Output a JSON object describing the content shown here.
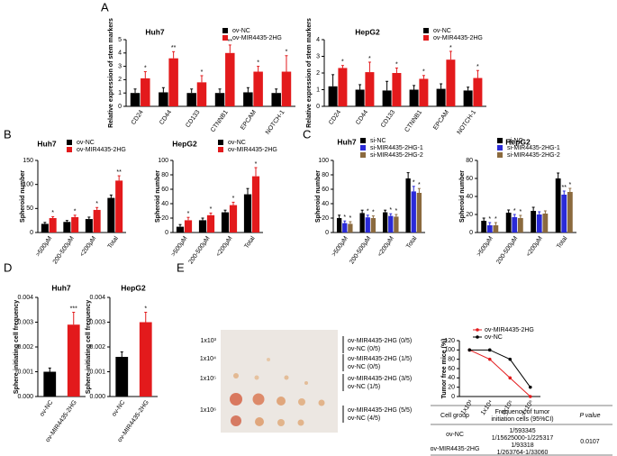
{
  "panel_labels": [
    "A",
    "B",
    "C",
    "D",
    "E"
  ],
  "chart_data": [
    {
      "type": "bar",
      "title": "Huh7",
      "ylabel": "Relative expression of stem markers",
      "legend": true,
      "categories": [
        "CD24",
        "CD44",
        "CD133",
        "CTNNB1",
        "EPCAM",
        "NOTCH-1"
      ],
      "ylim": [
        0,
        5
      ],
      "yticks": [
        0,
        1,
        2,
        3,
        4,
        5
      ],
      "series": [
        {
          "name": "ov-NC",
          "color": "#000000",
          "values": [
            1,
            1.05,
            1,
            1,
            1.05,
            1
          ],
          "errors": [
            0.3,
            0.35,
            0.3,
            0.3,
            0.35,
            0.3
          ],
          "annotations": [
            null,
            null,
            null,
            null,
            null,
            null
          ]
        },
        {
          "name": "ov-MIR4435-2HG",
          "color": "#e31a1c",
          "values": [
            2.1,
            3.6,
            1.8,
            4.0,
            2.6,
            2.6
          ],
          "errors": [
            0.5,
            0.5,
            0.5,
            0.6,
            0.4,
            1.2
          ],
          "annotations": [
            "*",
            "**",
            "*",
            "**",
            "*",
            "*"
          ]
        }
      ]
    },
    {
      "type": "bar",
      "title": "HepG2",
      "ylabel": "Relative expression of stem markers",
      "legend": true,
      "categories": [
        "CD24",
        "CD44",
        "CD133",
        "CTNNB1",
        "EPCAM",
        "NOTCH-1"
      ],
      "ylim": [
        0,
        4
      ],
      "yticks": [
        0,
        1,
        2,
        3,
        4
      ],
      "series": [
        {
          "name": "ov-NC",
          "color": "#000000",
          "values": [
            1.2,
            1.0,
            0.95,
            1.0,
            1.05,
            0.95
          ],
          "errors": [
            0.7,
            0.3,
            0.55,
            0.25,
            0.3,
            0.2
          ],
          "annotations": [
            null,
            null,
            null,
            null,
            null,
            null
          ]
        },
        {
          "name": "ov-MIR4435-2HG",
          "color": "#e31a1c",
          "values": [
            2.3,
            2.05,
            2.0,
            1.65,
            2.8,
            1.7
          ],
          "errors": [
            0.15,
            0.6,
            0.3,
            0.2,
            0.5,
            0.45
          ],
          "annotations": [
            "*",
            "*",
            "*",
            "*",
            "*",
            "*"
          ]
        }
      ]
    },
    {
      "type": "bar",
      "title": "Huh7",
      "ylabel": "Spheroid number",
      "legend": true,
      "categories": [
        ">500μM",
        "200-500μM",
        "<200μM",
        "Total"
      ],
      "ylim": [
        0,
        150
      ],
      "yticks": [
        0,
        50,
        100,
        150
      ],
      "series": [
        {
          "name": "ov-NC",
          "color": "#000000",
          "values": [
            18,
            22,
            28,
            72
          ],
          "errors": [
            3,
            3,
            4,
            6
          ],
          "annotations": [
            null,
            null,
            null,
            null
          ]
        },
        {
          "name": "ov-MIR4435-2HG",
          "color": "#e31a1c",
          "values": [
            30,
            32,
            47,
            108
          ],
          "errors": [
            3,
            4,
            5,
            10
          ],
          "annotations": [
            "*",
            "*",
            "*",
            "**"
          ]
        }
      ]
    },
    {
      "type": "bar",
      "title": "HepG2",
      "ylabel": "Spheroid number",
      "legend": true,
      "categories": [
        ">500μM",
        "200-500μM",
        "<200μM",
        "Total"
      ],
      "ylim": [
        0,
        100
      ],
      "yticks": [
        0,
        20,
        40,
        60,
        80,
        100
      ],
      "series": [
        {
          "name": "ov-NC",
          "color": "#000000",
          "values": [
            8,
            17,
            28,
            53
          ],
          "errors": [
            3,
            3,
            3,
            8
          ],
          "annotations": [
            null,
            null,
            null,
            null
          ]
        },
        {
          "name": "ov-MIR4435-2HG",
          "color": "#e31a1c",
          "values": [
            17,
            24,
            38,
            78
          ],
          "errors": [
            4,
            3,
            4,
            12
          ],
          "annotations": [
            "*",
            "*",
            "*",
            "*"
          ]
        }
      ]
    },
    {
      "type": "bar",
      "title": "Huh7",
      "ylabel": "Spheroid number",
      "legend": true,
      "categories": [
        ">500μM",
        "200-500μM",
        "<200μM",
        "Total"
      ],
      "ylim": [
        0,
        100
      ],
      "yticks": [
        0,
        20,
        40,
        60,
        80,
        100
      ],
      "series": [
        {
          "name": "si-NC",
          "color": "#000000",
          "values": [
            20,
            27,
            28,
            75
          ],
          "errors": [
            4,
            4,
            3,
            8
          ],
          "annotations": [
            null,
            null,
            null,
            null
          ]
        },
        {
          "name": "si-MIR4435-2HG-1",
          "color": "#2a2ad8",
          "values": [
            13,
            21,
            23,
            57
          ],
          "errors": [
            3,
            3,
            3,
            7
          ],
          "annotations": [
            "*",
            "*",
            "*",
            "*"
          ]
        },
        {
          "name": "si-MIR4435-2HG-2",
          "color": "#8b6a3e",
          "values": [
            12,
            20,
            22,
            55
          ],
          "errors": [
            3,
            3,
            3,
            6
          ],
          "annotations": [
            "*",
            "*",
            "*",
            "*"
          ]
        }
      ]
    },
    {
      "type": "bar",
      "title": "HepG2",
      "ylabel": "Spheroid number",
      "legend": true,
      "categories": [
        ">500μM",
        "200-500μM",
        "<200μM",
        "Total"
      ],
      "ylim": [
        0,
        80
      ],
      "yticks": [
        0,
        20,
        40,
        60,
        80
      ],
      "series": [
        {
          "name": "si-NC",
          "color": "#000000",
          "values": [
            13,
            22,
            24,
            60
          ],
          "errors": [
            3,
            3,
            4,
            6
          ],
          "annotations": [
            null,
            null,
            null,
            null
          ]
        },
        {
          "name": "si-MIR4435-2HG-1",
          "color": "#2a2ad8",
          "values": [
            8,
            17,
            20,
            42
          ],
          "errors": [
            3,
            3,
            3,
            4
          ],
          "annotations": [
            "*",
            "*",
            null,
            "**"
          ]
        },
        {
          "name": "si-MIR4435-2HG-2",
          "color": "#8b6a3e",
          "values": [
            8,
            16,
            21,
            45
          ],
          "errors": [
            3,
            3,
            3,
            4
          ],
          "annotations": [
            "*",
            "*",
            null,
            "*"
          ]
        }
      ]
    },
    {
      "type": "bar",
      "title": "Huh7",
      "ylabel": "Sphere-initiating cell frequency",
      "legend": false,
      "categories": [
        "ov-NC",
        "ov-MIR4435-2HG"
      ],
      "ylim": [
        0,
        0.004
      ],
      "yticks": [
        {
          "value": 0,
          "label": "0.000"
        },
        {
          "value": 0.001,
          "label": "0.001"
        },
        {
          "value": 0.002,
          "label": "0.002"
        },
        {
          "value": 0.003,
          "label": "0.003"
        },
        {
          "value": 0.004,
          "label": "0.004"
        }
      ],
      "values": [
        0.001,
        0.0029
      ],
      "errors": [
        0.00015,
        0.0005
      ],
      "colors": [
        "#000000",
        "#e31a1c"
      ],
      "annotations": [
        null,
        "***"
      ]
    },
    {
      "type": "bar",
      "title": "HepG2",
      "ylabel": "Sphere-initiating cell frequency",
      "legend": false,
      "categories": [
        "ov-NC",
        "ov-MIR4435-2HG"
      ],
      "ylim": [
        0,
        0.004
      ],
      "yticks": [
        {
          "value": 0,
          "label": "0.000"
        },
        {
          "value": 0.001,
          "label": "0.001"
        },
        {
          "value": 0.002,
          "label": "0.002"
        },
        {
          "value": 0.003,
          "label": "0.003"
        },
        {
          "value": 0.004,
          "label": "0.004"
        }
      ],
      "values": [
        0.0016,
        0.003
      ],
      "errors": [
        0.0002,
        0.0004
      ],
      "colors": [
        "#000000",
        "#e31a1c"
      ],
      "annotations": [
        null,
        "*"
      ]
    },
    {
      "type": "line",
      "ylabel": "Tumor free mice (%)",
      "legend": true,
      "categories": [
        "1x10³",
        "1x10⁴",
        "1x10⁵",
        "1x10⁶"
      ],
      "ylim": [
        0,
        120
      ],
      "yticks": [
        0,
        20,
        40,
        60,
        80,
        100,
        120
      ],
      "series": [
        {
          "name": "ov-MIR4435-2HG",
          "color": "#e31a1c",
          "values": [
            100,
            80,
            40,
            0
          ]
        },
        {
          "name": "ov-NC",
          "color": "#000000",
          "values": [
            100,
            100,
            80,
            20
          ]
        }
      ]
    }
  ],
  "photo": {
    "rows": [
      {
        "dose": "1x10³",
        "groups": [
          "ov-MIR4435-2HG (0/5)",
          "ov-NC (0/5)"
        ]
      },
      {
        "dose": "1x10⁴",
        "groups": [
          "ov-MIR4435-2HG (1/5)",
          "ov-NC (0/5)"
        ]
      },
      {
        "dose": "1x10⁵",
        "groups": [
          "ov-MIR4435-2HG (3/5)",
          "ov-NC (1/5)"
        ]
      },
      {
        "dose": "1x10⁶",
        "groups": [
          "ov-MIR4435-2HG (5/5)",
          "ov-NC (4/5)"
        ]
      }
    ]
  },
  "table": {
    "header": [
      "Cell group",
      [
        "Frequency of tumor",
        "initiation cells (95%CI)"
      ],
      "P value"
    ],
    "rows": [
      {
        "group": "ov-NC",
        "frequency": "1/593345",
        "ci": "1/15625000-1/225317"
      },
      {
        "group": "ov-MIR4435-2HG",
        "frequency": "1/93318",
        "ci": "1/263764-1/33060"
      }
    ],
    "p_value": "0.0107"
  }
}
